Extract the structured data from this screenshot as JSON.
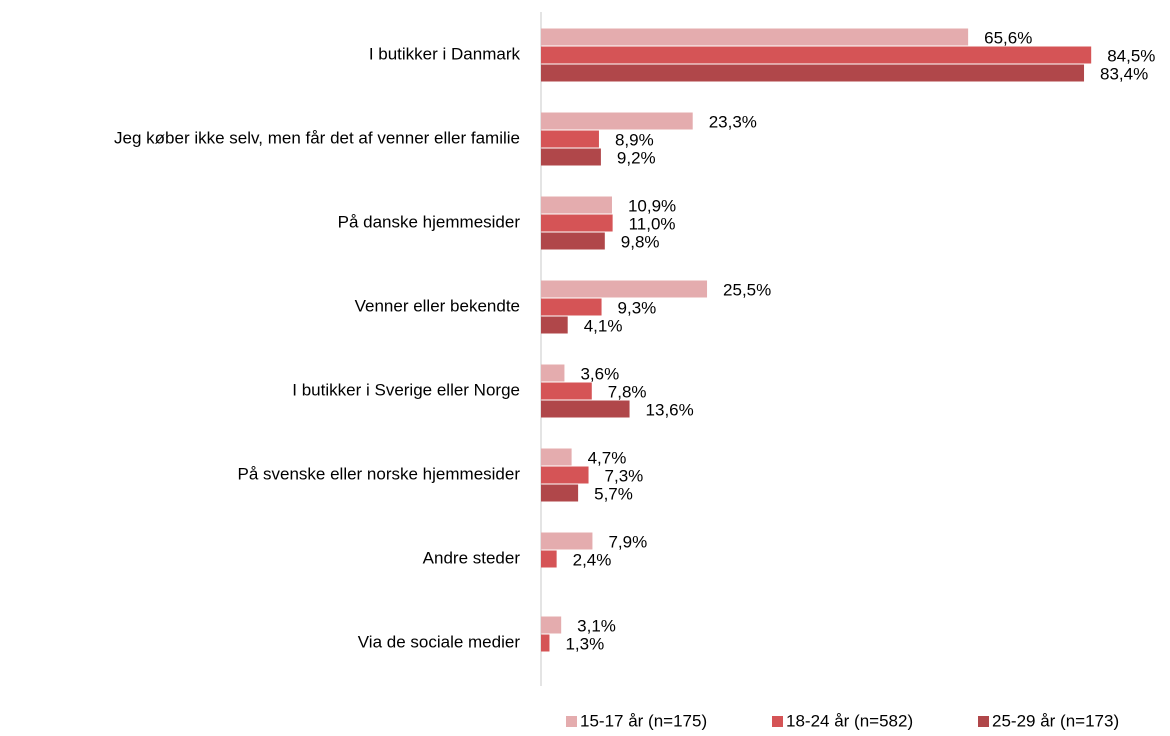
{
  "chart_data": {
    "type": "bar",
    "orientation": "horizontal",
    "categories": [
      "I butikker i Danmark",
      "Jeg køber ikke selv, men får det af venner eller familie",
      "På danske hjemmesider",
      "Venner eller bekendte",
      "I butikker i Sverige eller Norge",
      "På svenske eller norske hjemmesider",
      "Andre steder",
      "Via de sociale medier"
    ],
    "series": [
      {
        "name": "15-17 år (n=175)",
        "color": "#e4acae",
        "values": [
          65.6,
          23.3,
          10.9,
          25.5,
          3.6,
          4.7,
          7.9,
          3.1
        ],
        "value_labels": [
          "65,6%",
          "23,3%",
          "10,9%",
          "25,5%",
          "3,6%",
          "4,7%",
          "7,9%",
          "3,1%"
        ]
      },
      {
        "name": "18-24 år (n=582)",
        "color": "#d55456",
        "values": [
          84.5,
          8.9,
          11.0,
          9.3,
          7.8,
          7.3,
          2.4,
          1.3
        ],
        "value_labels": [
          "84,5%",
          "8,9%",
          "11,0%",
          "9,3%",
          "7,8%",
          "7,3%",
          "2,4%",
          "1,3%"
        ]
      },
      {
        "name": "25-29 år (n=173)",
        "color": "#b0474a",
        "values": [
          83.4,
          9.2,
          9.8,
          4.1,
          13.6,
          5.7,
          null,
          null
        ],
        "value_labels": [
          "83,4%",
          "9,2%",
          "9,8%",
          "4,1%",
          "13,6%",
          "5,7%",
          null,
          null
        ]
      }
    ],
    "xlim": [
      0,
      90
    ],
    "legend": "bottom"
  }
}
